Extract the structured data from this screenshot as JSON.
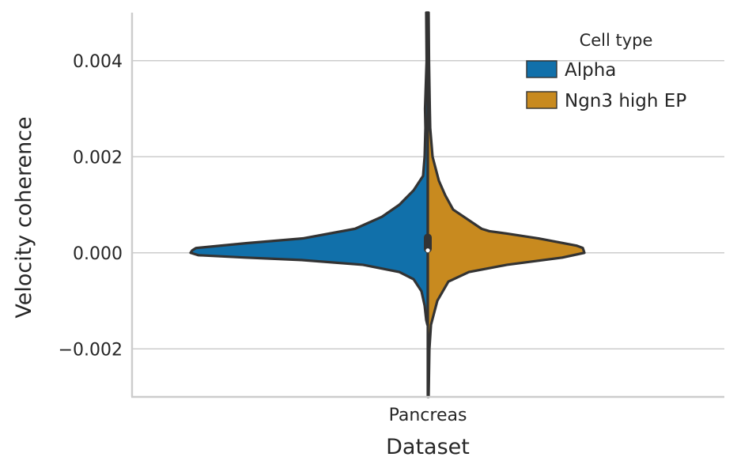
{
  "chart_data": {
    "type": "violin",
    "split": true,
    "xlabel": "Dataset",
    "ylabel": "Velocity coherence",
    "categories": [
      "Pancreas"
    ],
    "ylim": [
      -0.003,
      0.005
    ],
    "yticks": [
      -0.002,
      0.0,
      0.002,
      0.004
    ],
    "ytick_labels": [
      "−0.002",
      "0.000",
      "0.002",
      "0.004"
    ],
    "grid": true,
    "legend": {
      "title": "Cell type",
      "placement": "top-right",
      "entries": [
        "Alpha",
        "Ngn3 high EP"
      ]
    },
    "colors": {
      "Alpha": "#1170aa",
      "Ngn3 high EP": "#c88a1f",
      "outline": "#333333",
      "grid": "#cccccc",
      "axis": "#cccccc"
    },
    "series": [
      {
        "name": "Alpha",
        "side": "left",
        "max_density_at": 0.0,
        "range": [
          -0.0015,
          0.005
        ]
      },
      {
        "name": "Ngn3 high EP",
        "side": "right",
        "max_density_at": 0.0,
        "range": [
          -0.003,
          0.005
        ]
      }
    ],
    "inner_box": {
      "q1": 0.0,
      "median": 5e-05,
      "q3": 0.0004
    }
  }
}
